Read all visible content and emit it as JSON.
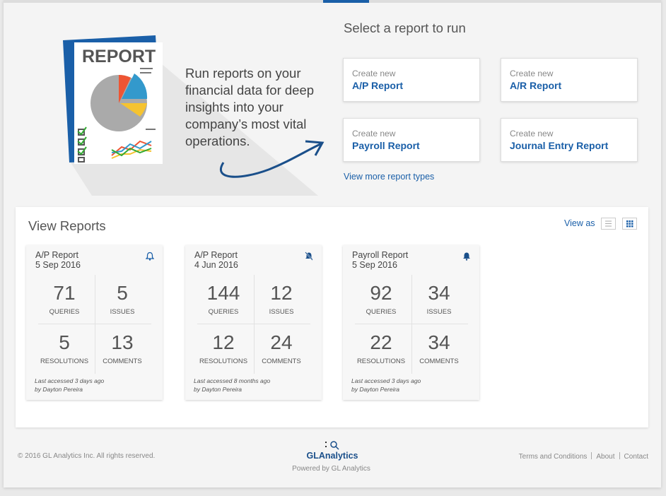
{
  "intro": {
    "illustration_title": "REPORT",
    "text": "Run reports on your financial data for deep insights into your company’s most vital operations."
  },
  "create": {
    "title": "Select a report to run",
    "cards": [
      {
        "prefix": "Create new",
        "name": "A/P Report"
      },
      {
        "prefix": "Create new",
        "name": "A/R Report"
      },
      {
        "prefix": "Create new",
        "name": "Payroll Report"
      },
      {
        "prefix": "Create new",
        "name": "Journal Entry Report"
      }
    ],
    "more_link": "View more report types"
  },
  "reports": {
    "title": "View Reports",
    "view_as": "View as",
    "cards": [
      {
        "name": "A/P Report",
        "date": "5 Sep 2016",
        "stats": [
          {
            "value": 71,
            "label": "QUERIES"
          },
          {
            "value": 5,
            "label": "ISSUES"
          },
          {
            "value": 5,
            "label": "RESOLUTIONS"
          },
          {
            "value": 13,
            "label": "COMMENTS"
          }
        ],
        "accessed": "Last accessed 3 days ago",
        "by": "by Dayton Pereira"
      },
      {
        "name": "A/P Report",
        "date": "4 Jun 2016",
        "stats": [
          {
            "value": 144,
            "label": "QUERIES"
          },
          {
            "value": 12,
            "label": "ISSUES"
          },
          {
            "value": 12,
            "label": "RESOLUTIONS"
          },
          {
            "value": 24,
            "label": "COMMENTS"
          }
        ],
        "accessed": "Last accessed 8 months ago",
        "by": "by Dayton Pereira"
      },
      {
        "name": "Payroll Report",
        "date": "5 Sep 2016",
        "stats": [
          {
            "value": 92,
            "label": "QUERIES"
          },
          {
            "value": 34,
            "label": "ISSUES"
          },
          {
            "value": 22,
            "label": "RESOLUTIONS"
          },
          {
            "value": 34,
            "label": "COMMENTS"
          }
        ],
        "accessed": "Last accessed 3 days ago",
        "by": "by Dayton Pereira"
      }
    ]
  },
  "footer": {
    "copyright": "© 2016 GL Analytics Inc. All rights reserved.",
    "brand": "GLAnalytics",
    "powered": "Powered by GL Analytics",
    "links": [
      "Terms and Conditions",
      "About",
      "Contact"
    ]
  }
}
